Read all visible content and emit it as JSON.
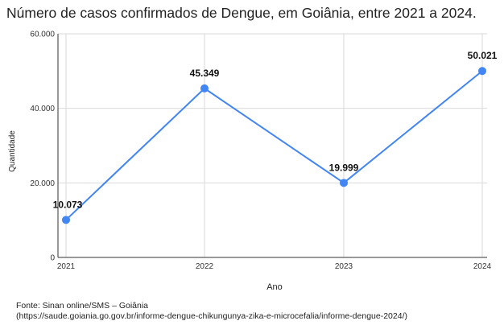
{
  "title": "Número de casos confirmados de Dengue, em Goiânia, entre 2021 a 2024.",
  "source_line1": "Fonte: Sinan online/SMS – Goiânia",
  "source_line2": "(https://saude.goiania.go.gov.br/informe-dengue-chikungunya-zika-e-microcefalia/informe-dengue-2024/)",
  "chart_data": {
    "type": "line",
    "categories": [
      "2021",
      "2022",
      "2023",
      "2024"
    ],
    "values": [
      10073,
      45349,
      19999,
      50021
    ],
    "data_labels": [
      "10.073",
      "45.349",
      "19.999",
      "50.021"
    ],
    "xlabel": "Ano",
    "ylabel": "Quantidade",
    "ylim": [
      0,
      60000
    ],
    "yticks": [
      0,
      20000,
      40000,
      60000
    ],
    "ytick_labels": [
      "0",
      "20.000",
      "40.000",
      "60.000"
    ],
    "grid": true,
    "legend": "none",
    "colors": {
      "line": "#4285f4",
      "grid": "#d9d9d9",
      "axis": "#333333"
    }
  }
}
